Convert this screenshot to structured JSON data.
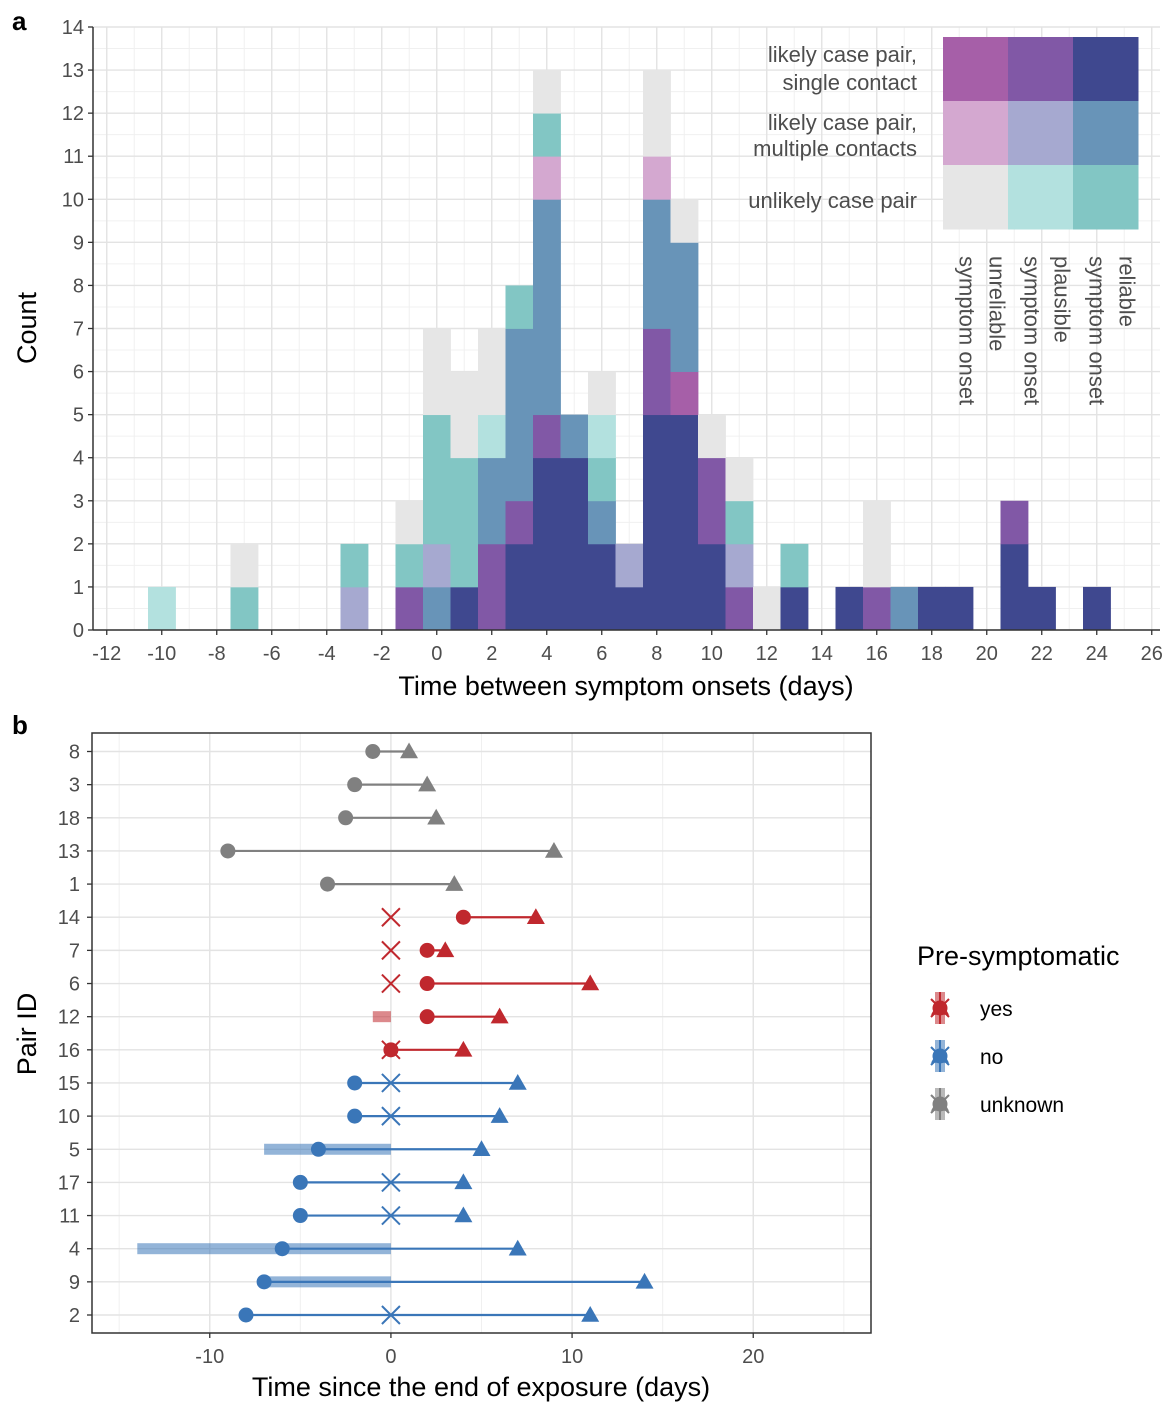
{
  "panel_a_label": "a",
  "panel_b_label": "b",
  "colors": {
    "likely_single": {
      "unreliable": "#a65fa8",
      "plausible": "#8158a6",
      "reliable": "#3f488f"
    },
    "likely_multiple": {
      "unreliable": "#d4a8d0",
      "plausible": "#a6a9d0",
      "reliable": "#6894b8"
    },
    "unlikely": {
      "unreliable": "#e6e6e6",
      "plausible": "#b3e1df",
      "reliable": "#82c6c4"
    },
    "yes": "#c0282e",
    "no": "#3a76b8",
    "unknown": "#808080"
  },
  "chart_data": [
    {
      "type": "bar",
      "stacked": true,
      "xlabel": "Time between symptom onsets (days)",
      "ylabel": "Count",
      "xlim": [
        -12.5,
        26.3
      ],
      "ylim": [
        0,
        14
      ],
      "xticks": [
        "-12",
        "-10",
        "-8",
        "-6",
        "-4",
        "-2",
        "0",
        "2",
        "4",
        "6",
        "8",
        "10",
        "12",
        "14",
        "16",
        "18",
        "20",
        "22",
        "24",
        "26"
      ],
      "yticks": [
        "0",
        "1",
        "2",
        "3",
        "4",
        "5",
        "6",
        "7",
        "8",
        "9",
        "10",
        "11",
        "12",
        "13",
        "14"
      ],
      "legend": {
        "placement": "top-right",
        "rows": [
          "likely case pair, single contact",
          "likely case pair, multiple contacts",
          "unlikely case pair"
        ],
        "row_keys": [
          "likely_single",
          "likely_multiple",
          "unlikely"
        ],
        "columns": [
          "unreliable symptom onset",
          "plausible symptom onset",
          "reliable symptom onset"
        ],
        "column_keys": [
          "unreliable",
          "plausible",
          "reliable"
        ]
      },
      "bins": [
        {
          "x": -10,
          "stack": [
            {
              "cat": "unlikely.plausible",
              "n": 1
            }
          ]
        },
        {
          "x": -7,
          "stack": [
            {
              "cat": "unlikely.reliable",
              "n": 1
            },
            {
              "cat": "unlikely.unreliable",
              "n": 1
            }
          ]
        },
        {
          "x": -3,
          "stack": [
            {
              "cat": "likely_multiple.plausible",
              "n": 1
            },
            {
              "cat": "unlikely.reliable",
              "n": 1
            }
          ]
        },
        {
          "x": -1,
          "stack": [
            {
              "cat": "likely_single.plausible",
              "n": 1
            },
            {
              "cat": "unlikely.reliable",
              "n": 1
            },
            {
              "cat": "unlikely.unreliable",
              "n": 1
            }
          ]
        },
        {
          "x": 0,
          "stack": [
            {
              "cat": "likely_multiple.reliable",
              "n": 1
            },
            {
              "cat": "likely_multiple.plausible",
              "n": 1
            },
            {
              "cat": "unlikely.reliable",
              "n": 3
            },
            {
              "cat": "unlikely.unreliable",
              "n": 2
            }
          ]
        },
        {
          "x": 1,
          "stack": [
            {
              "cat": "likely_single.reliable",
              "n": 1
            },
            {
              "cat": "unlikely.reliable",
              "n": 3
            },
            {
              "cat": "unlikely.unreliable",
              "n": 2
            }
          ]
        },
        {
          "x": 2,
          "stack": [
            {
              "cat": "likely_single.plausible",
              "n": 2
            },
            {
              "cat": "likely_multiple.reliable",
              "n": 2
            },
            {
              "cat": "unlikely.plausible",
              "n": 1
            },
            {
              "cat": "unlikely.unreliable",
              "n": 2
            }
          ]
        },
        {
          "x": 3,
          "stack": [
            {
              "cat": "likely_single.reliable",
              "n": 2
            },
            {
              "cat": "likely_single.plausible",
              "n": 1
            },
            {
              "cat": "likely_multiple.reliable",
              "n": 4
            },
            {
              "cat": "unlikely.reliable",
              "n": 1
            }
          ]
        },
        {
          "x": 4,
          "stack": [
            {
              "cat": "likely_single.reliable",
              "n": 4
            },
            {
              "cat": "likely_single.plausible",
              "n": 1
            },
            {
              "cat": "likely_multiple.reliable",
              "n": 5
            },
            {
              "cat": "likely_multiple.unreliable",
              "n": 1
            },
            {
              "cat": "unlikely.reliable",
              "n": 1
            },
            {
              "cat": "unlikely.unreliable",
              "n": 1
            }
          ]
        },
        {
          "x": 5,
          "stack": [
            {
              "cat": "likely_single.reliable",
              "n": 4
            },
            {
              "cat": "likely_multiple.reliable",
              "n": 1
            }
          ]
        },
        {
          "x": 6,
          "stack": [
            {
              "cat": "likely_single.reliable",
              "n": 2
            },
            {
              "cat": "likely_multiple.reliable",
              "n": 1
            },
            {
              "cat": "unlikely.reliable",
              "n": 1
            },
            {
              "cat": "unlikely.plausible",
              "n": 1
            },
            {
              "cat": "unlikely.unreliable",
              "n": 1
            }
          ]
        },
        {
          "x": 7,
          "stack": [
            {
              "cat": "likely_single.reliable",
              "n": 1
            },
            {
              "cat": "likely_multiple.plausible",
              "n": 1
            }
          ]
        },
        {
          "x": 8,
          "stack": [
            {
              "cat": "likely_single.reliable",
              "n": 5
            },
            {
              "cat": "likely_single.plausible",
              "n": 2
            },
            {
              "cat": "likely_multiple.reliable",
              "n": 3
            },
            {
              "cat": "likely_multiple.unreliable",
              "n": 1
            },
            {
              "cat": "unlikely.unreliable",
              "n": 2
            }
          ]
        },
        {
          "x": 9,
          "stack": [
            {
              "cat": "likely_single.reliable",
              "n": 5
            },
            {
              "cat": "likely_single.unreliable",
              "n": 1
            },
            {
              "cat": "likely_multiple.reliable",
              "n": 3
            },
            {
              "cat": "unlikely.unreliable",
              "n": 1
            }
          ]
        },
        {
          "x": 10,
          "stack": [
            {
              "cat": "likely_single.reliable",
              "n": 2
            },
            {
              "cat": "likely_single.plausible",
              "n": 2
            },
            {
              "cat": "unlikely.unreliable",
              "n": 1
            }
          ]
        },
        {
          "x": 11,
          "stack": [
            {
              "cat": "likely_single.plausible",
              "n": 1
            },
            {
              "cat": "likely_multiple.plausible",
              "n": 1
            },
            {
              "cat": "unlikely.reliable",
              "n": 1
            },
            {
              "cat": "unlikely.unreliable",
              "n": 1
            }
          ]
        },
        {
          "x": 12,
          "stack": [
            {
              "cat": "unlikely.unreliable",
              "n": 1
            }
          ]
        },
        {
          "x": 13,
          "stack": [
            {
              "cat": "likely_single.reliable",
              "n": 1
            },
            {
              "cat": "unlikely.reliable",
              "n": 1
            }
          ]
        },
        {
          "x": 15,
          "stack": [
            {
              "cat": "likely_single.reliable",
              "n": 1
            }
          ]
        },
        {
          "x": 16,
          "stack": [
            {
              "cat": "likely_single.plausible",
              "n": 1
            },
            {
              "cat": "unlikely.unreliable",
              "n": 2
            }
          ]
        },
        {
          "x": 17,
          "stack": [
            {
              "cat": "likely_multiple.reliable",
              "n": 1
            }
          ]
        },
        {
          "x": 18,
          "stack": [
            {
              "cat": "likely_single.reliable",
              "n": 1
            }
          ]
        },
        {
          "x": 19,
          "stack": [
            {
              "cat": "likely_single.reliable",
              "n": 1
            }
          ]
        },
        {
          "x": 21,
          "stack": [
            {
              "cat": "likely_single.reliable",
              "n": 2
            },
            {
              "cat": "likely_single.plausible",
              "n": 1
            }
          ]
        },
        {
          "x": 22,
          "stack": [
            {
              "cat": "likely_single.reliable",
              "n": 1
            }
          ]
        },
        {
          "x": 24,
          "stack": [
            {
              "cat": "likely_single.reliable",
              "n": 1
            }
          ]
        }
      ]
    },
    {
      "type": "dumbbell",
      "xlabel": "Time since the end of exposure (days)",
      "ylabel": "Pair ID",
      "xlim": [
        -16.5,
        26.5
      ],
      "xticks": [
        "-10",
        "0",
        "10",
        "20"
      ],
      "legend": {
        "title": "Pre-symptomatic",
        "placement": "right",
        "entries": [
          {
            "key": "yes",
            "label": "yes"
          },
          {
            "key": "no",
            "label": "no"
          },
          {
            "key": "unknown",
            "label": "unknown"
          }
        ]
      },
      "pairs": [
        {
          "id": "8",
          "status": "unknown",
          "infector_onset": -1,
          "infectee_onset": 1,
          "infector_range": null,
          "end_marker": false
        },
        {
          "id": "3",
          "status": "unknown",
          "infector_onset": -2,
          "infectee_onset": 2,
          "infector_range": null,
          "end_marker": false
        },
        {
          "id": "18",
          "status": "unknown",
          "infector_onset": -2.5,
          "infectee_onset": 2.5,
          "infector_range": null,
          "end_marker": false
        },
        {
          "id": "13",
          "status": "unknown",
          "infector_onset": -9,
          "infectee_onset": 9,
          "infector_range": null,
          "end_marker": false
        },
        {
          "id": "1",
          "status": "unknown",
          "infector_onset": -3.5,
          "infectee_onset": 3.5,
          "infector_range": null,
          "end_marker": false
        },
        {
          "id": "14",
          "status": "yes",
          "infector_onset": 4,
          "infectee_onset": 8,
          "infector_range": null,
          "end_marker": true
        },
        {
          "id": "7",
          "status": "yes",
          "infector_onset": 2,
          "infectee_onset": 3,
          "infector_range": null,
          "end_marker": true
        },
        {
          "id": "6",
          "status": "yes",
          "infector_onset": 2,
          "infectee_onset": 11,
          "infector_range": null,
          "end_marker": true
        },
        {
          "id": "12",
          "status": "yes",
          "infector_onset": 2,
          "infectee_onset": 6,
          "infector_range": [
            -1,
            0
          ],
          "end_marker": false
        },
        {
          "id": "16",
          "status": "yes",
          "infector_onset": 0,
          "infectee_onset": 4,
          "infector_range": null,
          "end_marker": true
        },
        {
          "id": "15",
          "status": "no",
          "infector_onset": -2,
          "infectee_onset": 7,
          "infector_range": null,
          "end_marker": true
        },
        {
          "id": "10",
          "status": "no",
          "infector_onset": -2,
          "infectee_onset": 6,
          "infector_range": null,
          "end_marker": true
        },
        {
          "id": "5",
          "status": "no",
          "infector_onset": -4,
          "infectee_onset": 5,
          "infector_range": [
            -7,
            0
          ],
          "end_marker": false
        },
        {
          "id": "17",
          "status": "no",
          "infector_onset": -5,
          "infectee_onset": 4,
          "infector_range": null,
          "end_marker": true
        },
        {
          "id": "11",
          "status": "no",
          "infector_onset": -5,
          "infectee_onset": 4,
          "infector_range": null,
          "end_marker": true
        },
        {
          "id": "4",
          "status": "no",
          "infector_onset": -6,
          "infectee_onset": 7,
          "infector_range": [
            -14,
            0
          ],
          "end_marker": false
        },
        {
          "id": "9",
          "status": "no",
          "infector_onset": -7,
          "infectee_onset": 14,
          "infector_range": [
            -7,
            0
          ],
          "end_marker": false
        },
        {
          "id": "2",
          "status": "no",
          "infector_onset": -8,
          "infectee_onset": 11,
          "infector_range": null,
          "end_marker": true
        }
      ]
    }
  ]
}
